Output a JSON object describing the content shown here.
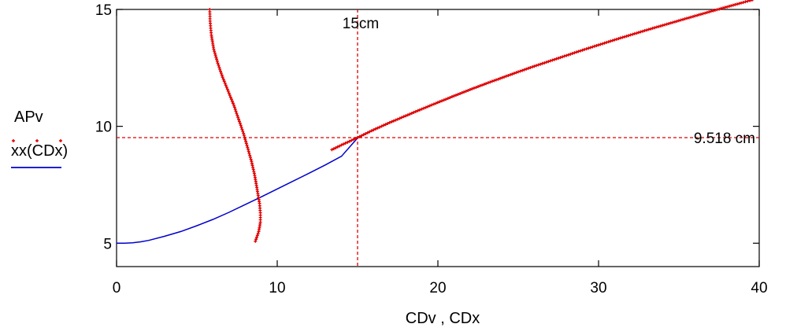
{
  "chart_data": {
    "type": "line",
    "xlabel": "CDv , CDx",
    "xlim": [
      0,
      40
    ],
    "ylim": [
      4,
      15
    ],
    "x_ticks": [
      0,
      10,
      20,
      30,
      40
    ],
    "y_ticks": [
      5,
      10,
      15
    ],
    "grid": false,
    "legend_position": "left",
    "series": [
      {
        "name": "APv",
        "style": "markers",
        "color": "#e00000",
        "x": [
          5.8,
          5.82,
          5.9,
          6.05,
          6.3,
          6.6,
          6.95,
          7.3,
          7.6,
          7.9,
          8.15,
          8.4,
          8.6,
          8.75,
          8.9,
          8.95,
          8.95,
          8.85,
          8.6
        ],
        "y": [
          15.0,
          14.5,
          13.9,
          13.3,
          12.7,
          12.1,
          11.5,
          10.9,
          10.3,
          9.7,
          9.1,
          8.5,
          7.9,
          7.3,
          6.7,
          6.3,
          5.9,
          5.5,
          5.0
        ]
      },
      {
        "name": "APv",
        "style": "markers",
        "color": "#e00000",
        "x": [
          13.4,
          14,
          15,
          16,
          17,
          18,
          19,
          20,
          21,
          22,
          23,
          24,
          25,
          26,
          27,
          28,
          29,
          30,
          31,
          32,
          33,
          34,
          35,
          36,
          37,
          38,
          39,
          39.7
        ],
        "y": [
          9.0,
          9.2,
          9.52,
          9.85,
          10.16,
          10.45,
          10.74,
          11.02,
          11.3,
          11.57,
          11.83,
          12.08,
          12.33,
          12.57,
          12.8,
          13.03,
          13.26,
          13.48,
          13.7,
          13.91,
          14.12,
          14.32,
          14.52,
          14.72,
          14.92,
          15.11,
          15.3,
          15.43
        ]
      },
      {
        "name": "xx(CDx)",
        "style": "line",
        "color": "#0000cc",
        "x": [
          0,
          0.5,
          1,
          1.5,
          2,
          3,
          4,
          5,
          6,
          7,
          8,
          9,
          10,
          11,
          12,
          13,
          14,
          15,
          16,
          17,
          18,
          19,
          20,
          22,
          24,
          26,
          28,
          30,
          32,
          34,
          36,
          38,
          39.7
        ],
        "y": [
          5.0,
          5.0,
          5.02,
          5.06,
          5.12,
          5.3,
          5.5,
          5.75,
          6.02,
          6.32,
          6.65,
          6.98,
          7.32,
          7.66,
          8.0,
          8.35,
          8.72,
          9.5,
          9.85,
          10.16,
          10.45,
          10.74,
          11.02,
          11.57,
          12.08,
          12.57,
          13.03,
          13.48,
          13.91,
          14.32,
          14.72,
          15.11,
          15.43
        ]
      }
    ],
    "reference_lines": [
      {
        "axis": "x",
        "value": 15,
        "label": "15cm",
        "color": "#e00000",
        "style": "dashed"
      },
      {
        "axis": "y",
        "value": 9.518,
        "label": "9.518 cm",
        "color": "#e00000",
        "style": "dashed"
      }
    ]
  },
  "legend": {
    "items": [
      {
        "label": "APv",
        "marker": "crosses",
        "color": "#e00000"
      },
      {
        "label": "xx(CDx)",
        "marker": "line",
        "color": "#0000cc"
      }
    ]
  }
}
